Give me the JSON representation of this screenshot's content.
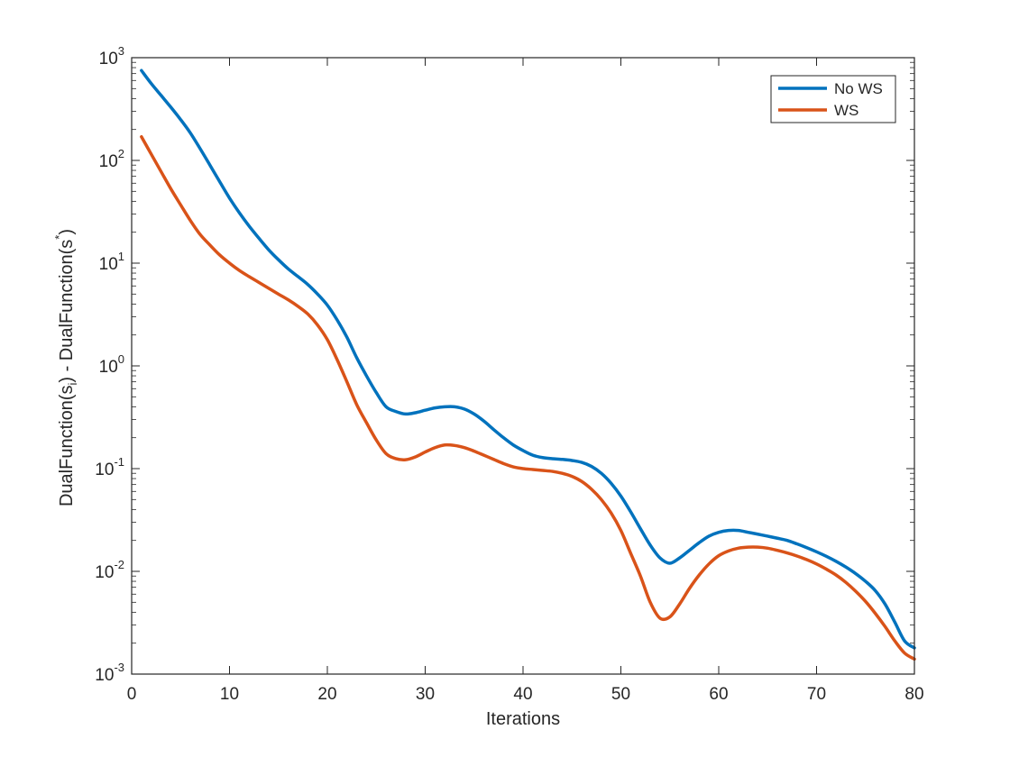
{
  "chart_data": {
    "type": "line",
    "xlabel": "Iterations",
    "ylabel": {
      "parts": [
        "DualFunction(s",
        "i",
        ") - DualFunction(s",
        "*",
        ")"
      ]
    },
    "xlim": [
      0,
      80
    ],
    "ylim": [
      0.001,
      1000
    ],
    "yscale": "log",
    "xticks": [
      0,
      10,
      20,
      30,
      40,
      50,
      60,
      70,
      80
    ],
    "ytick_exponents": [
      -3,
      -2,
      -1,
      0,
      1,
      2,
      3
    ],
    "ytick_base": "10",
    "grid": false,
    "legend_position": "top-right",
    "series": [
      {
        "name": "No WS",
        "color": "#0072BD",
        "x": [
          1,
          2,
          3,
          4,
          5,
          6,
          7,
          8,
          9,
          10,
          11,
          12,
          13,
          14,
          15,
          16,
          17,
          18,
          19,
          20,
          21,
          22,
          23,
          24,
          25,
          26,
          27,
          28,
          29,
          30,
          31,
          32,
          33,
          34,
          35,
          36,
          37,
          38,
          39,
          40,
          41,
          42,
          43,
          44,
          45,
          46,
          47,
          48,
          49,
          50,
          51,
          52,
          53,
          54,
          55,
          56,
          57,
          58,
          59,
          60,
          61,
          62,
          63,
          64,
          65,
          66,
          67,
          68,
          69,
          70,
          71,
          72,
          73,
          74,
          75,
          76,
          77,
          78,
          79,
          80
        ],
        "y": [
          750,
          560,
          430,
          330,
          250,
          185,
          130,
          90,
          62,
          43,
          31,
          23,
          17.5,
          13.5,
          10.8,
          8.8,
          7.4,
          6.2,
          5.0,
          3.9,
          2.8,
          1.9,
          1.2,
          0.8,
          0.55,
          0.4,
          0.36,
          0.34,
          0.35,
          0.37,
          0.39,
          0.4,
          0.4,
          0.38,
          0.34,
          0.29,
          0.24,
          0.2,
          0.17,
          0.15,
          0.135,
          0.128,
          0.125,
          0.123,
          0.12,
          0.115,
          0.105,
          0.09,
          0.072,
          0.054,
          0.038,
          0.026,
          0.018,
          0.0135,
          0.012,
          0.0135,
          0.016,
          0.019,
          0.022,
          0.024,
          0.025,
          0.025,
          0.024,
          0.023,
          0.022,
          0.021,
          0.02,
          0.0185,
          0.017,
          0.0155,
          0.014,
          0.0125,
          0.011,
          0.0095,
          0.008,
          0.0065,
          0.0048,
          0.0032,
          0.0021,
          0.0018
        ]
      },
      {
        "name": "WS",
        "color": "#D95319",
        "x": [
          1,
          2,
          3,
          4,
          5,
          6,
          7,
          8,
          9,
          10,
          11,
          12,
          13,
          14,
          15,
          16,
          17,
          18,
          19,
          20,
          21,
          22,
          23,
          24,
          25,
          26,
          27,
          28,
          29,
          30,
          31,
          32,
          33,
          34,
          35,
          36,
          37,
          38,
          39,
          40,
          41,
          42,
          43,
          44,
          45,
          46,
          47,
          48,
          49,
          50,
          51,
          52,
          53,
          54,
          55,
          56,
          57,
          58,
          59,
          60,
          61,
          62,
          63,
          64,
          65,
          66,
          67,
          68,
          69,
          70,
          71,
          72,
          73,
          74,
          75,
          76,
          77,
          78,
          79,
          80
        ],
        "y": [
          170,
          115,
          78,
          53,
          37,
          26,
          19,
          15,
          12,
          10,
          8.5,
          7.4,
          6.5,
          5.7,
          5.0,
          4.4,
          3.8,
          3.2,
          2.5,
          1.8,
          1.15,
          0.7,
          0.42,
          0.28,
          0.19,
          0.14,
          0.125,
          0.122,
          0.13,
          0.145,
          0.16,
          0.17,
          0.168,
          0.16,
          0.148,
          0.135,
          0.123,
          0.112,
          0.104,
          0.1,
          0.098,
          0.096,
          0.094,
          0.09,
          0.084,
          0.075,
          0.063,
          0.05,
          0.037,
          0.025,
          0.015,
          0.009,
          0.005,
          0.0035,
          0.0036,
          0.0048,
          0.0068,
          0.0092,
          0.0118,
          0.0142,
          0.0158,
          0.0168,
          0.0172,
          0.0172,
          0.0168,
          0.016,
          0.0151,
          0.0141,
          0.013,
          0.0118,
          0.0105,
          0.0092,
          0.0078,
          0.0064,
          0.0051,
          0.0039,
          0.0029,
          0.0021,
          0.0016,
          0.0014
        ]
      }
    ]
  }
}
